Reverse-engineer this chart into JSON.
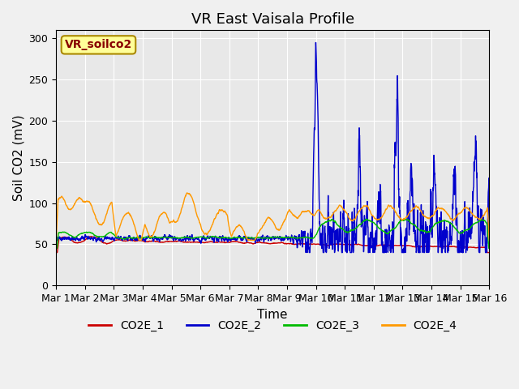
{
  "title": "VR East Vaisala Profile",
  "ylabel": "Soil CO2 (mV)",
  "xlabel": "Time",
  "ylim": [
    0,
    310
  ],
  "xlim": [
    0,
    15
  ],
  "xtick_labels": [
    "Mar 1",
    "Mar 2",
    "Mar 3",
    "Mar 4",
    "Mar 5",
    "Mar 6",
    "Mar 7",
    "Mar 8",
    "Mar 9",
    "Mar 10",
    "Mar 11",
    "Mar 12",
    "Mar 13",
    "Mar 14",
    "Mar 15",
    "Mar 16"
  ],
  "ytick_values": [
    0,
    50,
    100,
    150,
    200,
    250,
    300
  ],
  "legend_box_label": "VR_soilco2",
  "series_labels": [
    "CO2E_1",
    "CO2E_2",
    "CO2E_3",
    "CO2E_4"
  ],
  "series_colors": [
    "#cc0000",
    "#0000cc",
    "#00bb00",
    "#ff9900"
  ],
  "background_color": "#e8e8e8",
  "title_fontsize": 13,
  "axis_fontsize": 11,
  "tick_fontsize": 9,
  "legend_fontsize": 10
}
